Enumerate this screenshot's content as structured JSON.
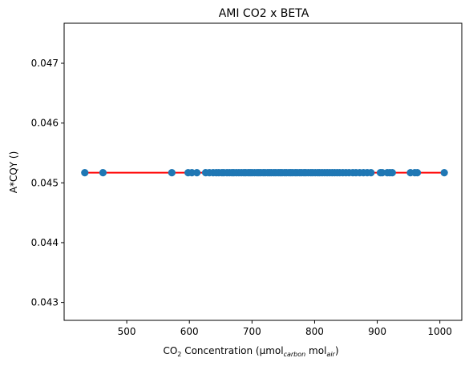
{
  "chart_data": {
    "type": "scatter",
    "title": "AMI CO2 x BETA",
    "xlabel": {
      "main": "CO",
      "sub": "2",
      "mid": " Concentration (µmol",
      "unit_sub1": "carbon",
      "unit_mid": " mol",
      "unit_sub2": "air",
      "close": ")"
    },
    "ylabel": "A*CQY ()",
    "xlim": [
      400,
      1035
    ],
    "ylim": [
      0.0427,
      0.04767
    ],
    "xticks": [
      500,
      600,
      700,
      800,
      900,
      1000
    ],
    "xtick_labels": [
      "500",
      "600",
      "700",
      "800",
      "900",
      "1000"
    ],
    "yticks": [
      0.043,
      0.044,
      0.045,
      0.046,
      0.047
    ],
    "ytick_labels": [
      "0.043",
      "0.044",
      "0.045",
      "0.046",
      "0.047"
    ],
    "grid": false,
    "colors": {
      "points": "#1f77b4",
      "fit_line": "#ff0000"
    },
    "series": [
      {
        "x": [
          433,
          462,
          572,
          598,
          604,
          612,
          626,
          632,
          638,
          643,
          647,
          652,
          655,
          660,
          664,
          668,
          671,
          675,
          679,
          683,
          687,
          690,
          694,
          697,
          700,
          704,
          708,
          711,
          714,
          718,
          721,
          725,
          728,
          731,
          735,
          738,
          742,
          745,
          748,
          752,
          755,
          759,
          762,
          765,
          769,
          772,
          776,
          779,
          783,
          786,
          790,
          794,
          797,
          801,
          805,
          808,
          812,
          816,
          820,
          824,
          828,
          832,
          836,
          840,
          845,
          850,
          855,
          861,
          866,
          872,
          878,
          884,
          890,
          905,
          908,
          916,
          920,
          924,
          953,
          960,
          964,
          1007
        ],
        "y": [
          0.04517,
          0.04517,
          0.04517,
          0.04517,
          0.04517,
          0.04517,
          0.04517,
          0.04517,
          0.04517,
          0.04517,
          0.04517,
          0.04517,
          0.04517,
          0.04517,
          0.04517,
          0.04517,
          0.04517,
          0.04517,
          0.04517,
          0.04517,
          0.04517,
          0.04517,
          0.04517,
          0.04517,
          0.04517,
          0.04517,
          0.04517,
          0.04517,
          0.04517,
          0.04517,
          0.04517,
          0.04517,
          0.04517,
          0.04517,
          0.04517,
          0.04517,
          0.04517,
          0.04517,
          0.04517,
          0.04517,
          0.04517,
          0.04517,
          0.04517,
          0.04517,
          0.04517,
          0.04517,
          0.04517,
          0.04517,
          0.04517,
          0.04517,
          0.04517,
          0.04517,
          0.04517,
          0.04517,
          0.04517,
          0.04517,
          0.04517,
          0.04517,
          0.04517,
          0.04517,
          0.04517,
          0.04517,
          0.04517,
          0.04517,
          0.04517,
          0.04517,
          0.04517,
          0.04517,
          0.04517,
          0.04517,
          0.04517,
          0.04517,
          0.04517,
          0.04517,
          0.04517,
          0.04517,
          0.04517,
          0.04517,
          0.04517,
          0.04517,
          0.04517,
          0.04517
        ]
      }
    ],
    "fit_line": {
      "x": [
        433,
        1007
      ],
      "y": [
        0.04517,
        0.04517
      ]
    }
  }
}
